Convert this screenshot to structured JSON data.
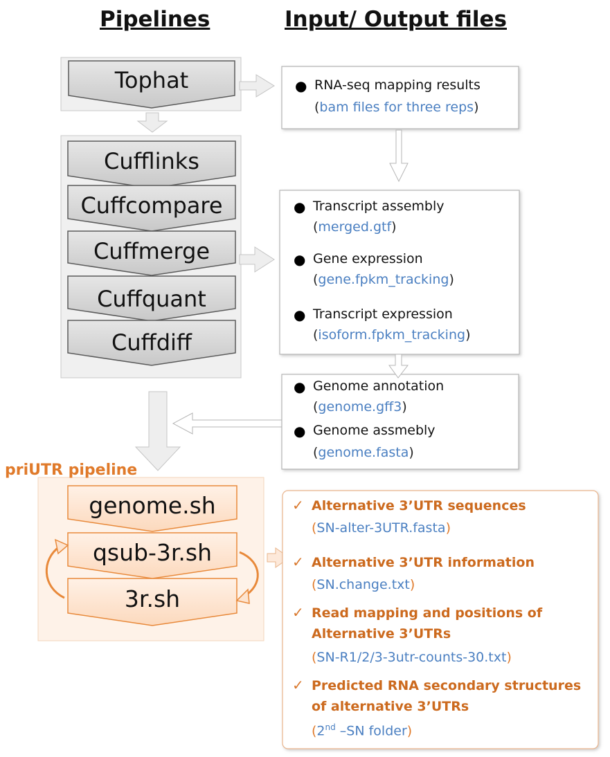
{
  "headings": {
    "pipelines": "Pipelines",
    "io_files": "Input/ Output files"
  },
  "tophat": {
    "label": "Tophat"
  },
  "cufflinks_steps": [
    "Cufflinks",
    "Cuffcompare",
    "Cuffmerge",
    "Cuffquant",
    "Cuffdiff"
  ],
  "priutr": {
    "title": "priUTR pipeline",
    "steps": [
      "genome.sh",
      "qsub-3r.sh",
      "3r.sh"
    ]
  },
  "box_mapping": {
    "items": [
      {
        "title": "RNA-seq mapping results",
        "file": "bam files for three reps"
      }
    ]
  },
  "box_cuff": {
    "items": [
      {
        "title": "Transcript assembly",
        "file": "merged.gtf"
      },
      {
        "title": "Gene expression",
        "file": "gene.fpkm_tracking"
      },
      {
        "title": "Transcript expression",
        "file": "isoform.fpkm_tracking"
      }
    ]
  },
  "box_genome": {
    "items": [
      {
        "title": "Genome annotation",
        "file": "genome.gff3"
      },
      {
        "title": "Genome assmebly",
        "file": "genome.fasta"
      }
    ]
  },
  "box_outputs": {
    "items": [
      {
        "title_lines": [
          "Alternative 3’UTR sequences"
        ],
        "file": "SN-alter-3UTR.fasta"
      },
      {
        "title_lines": [
          "Alternative 3’UTR information"
        ],
        "file": "SN.change.txt"
      },
      {
        "title_lines": [
          "Read mapping and positions of",
          "Alternative 3’UTRs"
        ],
        "file": "SN-R1/2/3-3utr-counts-30.txt"
      },
      {
        "title_lines": [
          "Predicted RNA secondary structures",
          "of alternative 3’UTRs"
        ],
        "file_sup": "nd",
        "file_pre": "2",
        "file_post": " –SN folder"
      }
    ]
  },
  "colors": {
    "gray_fill": "#d9d9d9",
    "gray_stroke": "#6b6b6b",
    "orange_fill": "#fde4d0",
    "orange_stroke": "#e8893a",
    "orange_text": "#e07a2a",
    "blue_text": "#4a7fc1"
  }
}
